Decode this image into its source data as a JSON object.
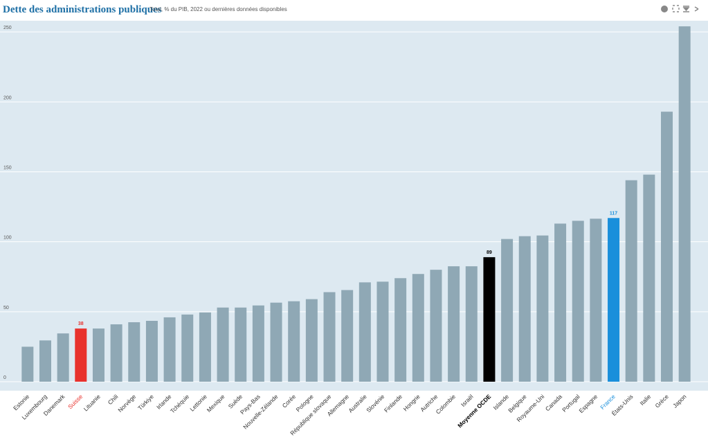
{
  "chart_data": {
    "type": "bar",
    "title": "Dette des administrations publiques",
    "subtitle": "Total, % du PIB, 2022 ou dernières données disponibles",
    "categories": [
      "Estonie",
      "Luxembourg",
      "Danemark",
      "Suisse",
      "Lituanie",
      "Chili",
      "Norvège",
      "Türkiye",
      "Irlande",
      "Tchéquie",
      "Lettonie",
      "Mexique",
      "Suède",
      "Pays-Bas",
      "Nouvelle-Zélande",
      "Corée",
      "Pologne",
      "République slovaque",
      "Allemagne",
      "Australie",
      "Slovénie",
      "Finlande",
      "Hongrie",
      "Autriche",
      "Colombie",
      "Israël",
      "Moyenne OCDE",
      "Islande",
      "Belgique",
      "Royaume-Uni",
      "Canada",
      "Portugal",
      "Espagne",
      "France",
      "États-Unis",
      "Italie",
      "Grèce",
      "Japon"
    ],
    "values": [
      25,
      29.5,
      34.5,
      38,
      38,
      41,
      42.5,
      43.5,
      46,
      48,
      49.5,
      53,
      53,
      54.5,
      56.5,
      57.5,
      59,
      64,
      65.5,
      71,
      71.5,
      74,
      77,
      80,
      82.5,
      82.5,
      89,
      102,
      104,
      104.5,
      113,
      115,
      116.5,
      117,
      144,
      148,
      193,
      254
    ],
    "color": "#8fa8b5",
    "colors": [
      "#8fa8b5",
      "#8fa8b5",
      "#8fa8b5",
      "#e8322d",
      "#8fa8b5",
      "#8fa8b5",
      "#8fa8b5",
      "#8fa8b5",
      "#8fa8b5",
      "#8fa8b5",
      "#8fa8b5",
      "#8fa8b5",
      "#8fa8b5",
      "#8fa8b5",
      "#8fa8b5",
      "#8fa8b5",
      "#8fa8b5",
      "#8fa8b5",
      "#8fa8b5",
      "#8fa8b5",
      "#8fa8b5",
      "#8fa8b5",
      "#8fa8b5",
      "#8fa8b5",
      "#8fa8b5",
      "#8fa8b5",
      "#000000",
      "#8fa8b5",
      "#8fa8b5",
      "#8fa8b5",
      "#8fa8b5",
      "#8fa8b5",
      "#8fa8b5",
      "#1a8fdb",
      "#8fa8b5",
      "#8fa8b5",
      "#8fa8b5",
      "#8fa8b5"
    ],
    "ylim": [
      0,
      258
    ],
    "yticks": [
      0,
      50,
      100,
      150,
      200,
      250
    ],
    "grid": true
  }
}
